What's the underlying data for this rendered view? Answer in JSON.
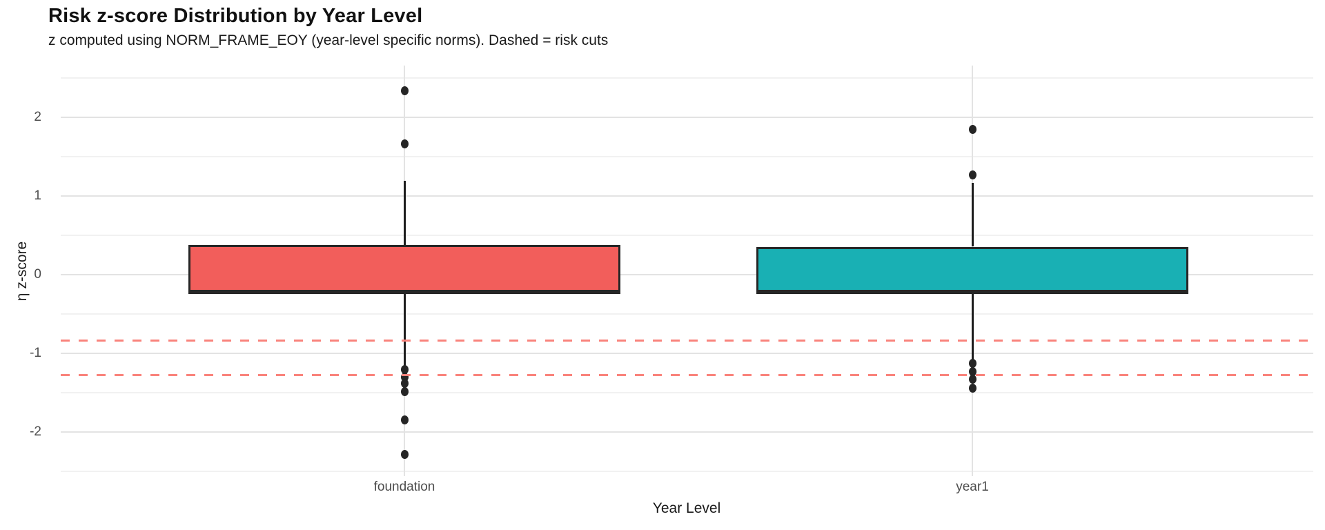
{
  "chart_data": {
    "type": "box",
    "title": "Risk z-score Distribution by Year Level",
    "subtitle": "z computed using NORM_FRAME_EOY (year-level specific norms). Dashed = risk cuts",
    "xlabel": "Year Level",
    "ylabel": "η z-score",
    "categories": [
      "foundation",
      "year1"
    ],
    "yticks": [
      2,
      1,
      0,
      -1,
      -2
    ],
    "ylim": [
      -2.57,
      2.65
    ],
    "grid": "horizontal major+minor light gray; vertical major at each category; no panel border",
    "legend": "none",
    "risk_cuts": [
      -0.84,
      -1.28
    ],
    "series": [
      {
        "name": "foundation",
        "color": "#F25E5B",
        "q1": -0.23,
        "median": -0.22,
        "q3": 0.37,
        "whisker_low": -1.16,
        "whisker_high": 1.19,
        "outliers_high": [
          2.33,
          1.66
        ],
        "outliers_low": [
          -1.21,
          -1.31,
          -1.39,
          -1.49,
          -1.85,
          -2.29
        ]
      },
      {
        "name": "year1",
        "color": "#19B0B4",
        "q1": -0.23,
        "median": -0.22,
        "q3": 0.35,
        "whisker_low": -1.1,
        "whisker_high": 1.16,
        "outliers_high": [
          1.84,
          1.26
        ],
        "outliers_low": [
          -1.13,
          -1.24,
          -1.33,
          -1.45
        ]
      }
    ],
    "styles": {
      "risk_line_color": "#F9837C",
      "box_border_color": "#262626",
      "whisker_color": "#1D1D1D",
      "outlier_color": "#252525",
      "grid_major_color": "#E3E3E3",
      "grid_minor_color": "#F1F1F1",
      "tick_label_color": "#4D4D4D",
      "text_color": "#1A1A1A",
      "background": "#FFFFFF"
    }
  }
}
